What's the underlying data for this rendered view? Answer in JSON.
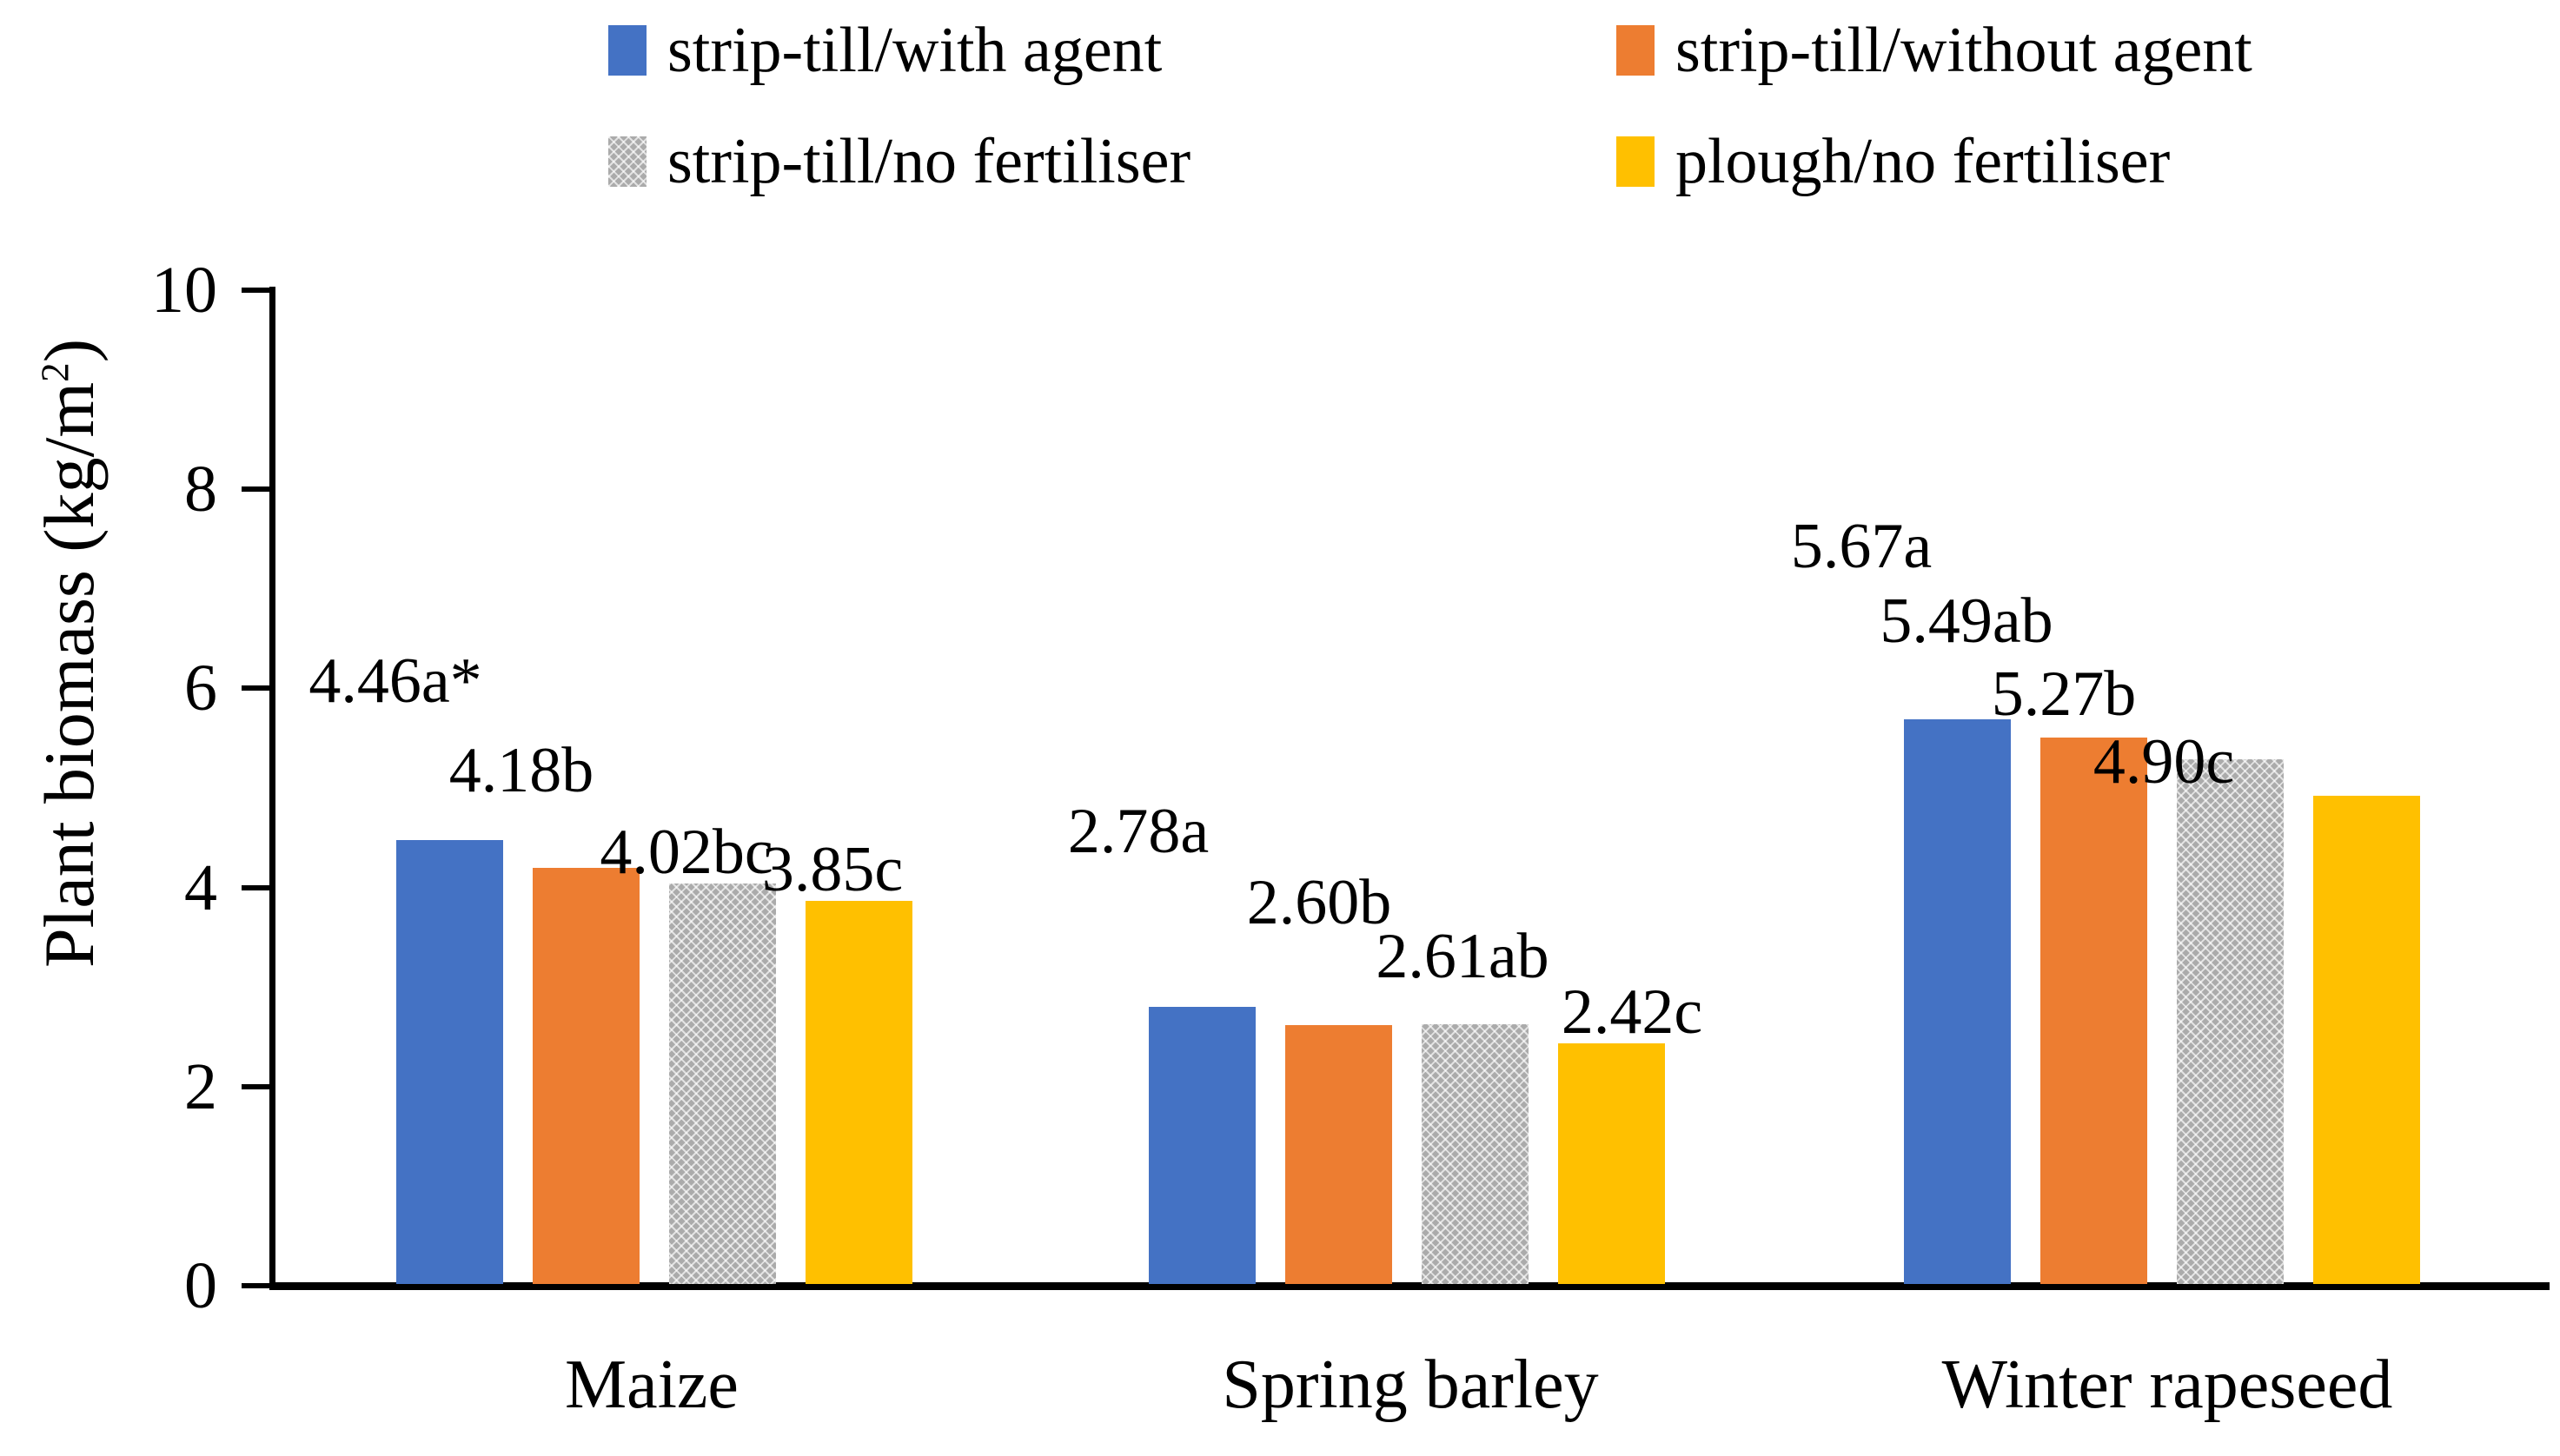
{
  "chart_data": {
    "type": "bar",
    "title": "",
    "ylabel": "Plant biomass (kg/m2)",
    "ylabel_parts": {
      "main": "Plant biomass (kg/m",
      "sup": "2",
      "close": ")"
    },
    "ylim": [
      0,
      10
    ],
    "yticks": [
      0,
      2,
      4,
      6,
      8,
      10
    ],
    "grid": false,
    "legend_position": "top",
    "categories": [
      "Maize",
      "Spring barley",
      "Winter rapeseed"
    ],
    "series": [
      {
        "name": "strip-till/with agent",
        "color": "#4472C4",
        "pattern_fill": false,
        "values": [
          4.46,
          2.78,
          5.67
        ],
        "point_labels": [
          "4.46a*",
          "2.78a",
          "5.67a"
        ]
      },
      {
        "name": "strip-till/without agent",
        "color": "#ED7D31",
        "pattern_fill": false,
        "values": [
          4.18,
          2.6,
          5.49
        ],
        "point_labels": [
          "4.18b",
          "2.60b",
          "5.49ab"
        ]
      },
      {
        "name": "strip-till/no fertiliser",
        "color": "#A5A5A5",
        "pattern_fill": true,
        "values": [
          4.02,
          2.61,
          5.27
        ],
        "point_labels": [
          "4.02bc",
          "2.61ab",
          "5.27b"
        ]
      },
      {
        "name": "plough/no fertiliser",
        "color": "#FFC000",
        "pattern_fill": false,
        "values": [
          3.85,
          2.42,
          4.9
        ],
        "point_labels": [
          "3.85c",
          "2.42c",
          "4.90c"
        ]
      }
    ]
  }
}
